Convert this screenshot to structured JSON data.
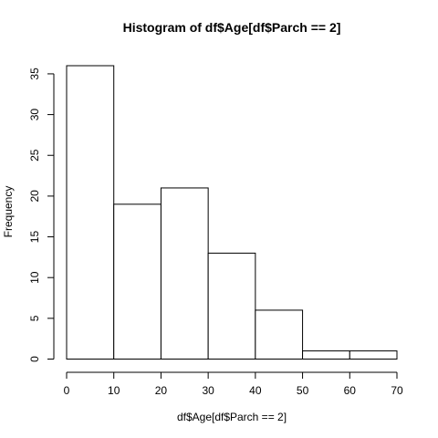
{
  "chart_data": {
    "type": "bar",
    "title": "Histogram of df$Age[df$Parch == 2]",
    "xlabel": "df$Age[df$Parch == 2]",
    "ylabel": "Frequency",
    "bins": [
      {
        "start": 0,
        "end": 10,
        "value": 36
      },
      {
        "start": 10,
        "end": 20,
        "value": 19
      },
      {
        "start": 20,
        "end": 30,
        "value": 21
      },
      {
        "start": 30,
        "end": 40,
        "value": 13
      },
      {
        "start": 40,
        "end": 50,
        "value": 6
      },
      {
        "start": 50,
        "end": 60,
        "value": 1
      },
      {
        "start": 60,
        "end": 70,
        "value": 1
      }
    ],
    "xlim": [
      0,
      70
    ],
    "ylim": [
      0,
      36
    ],
    "xticks": [
      0,
      10,
      20,
      30,
      40,
      50,
      60,
      70
    ],
    "yticks": [
      0,
      5,
      10,
      15,
      20,
      25,
      30,
      35
    ],
    "grid": false
  }
}
